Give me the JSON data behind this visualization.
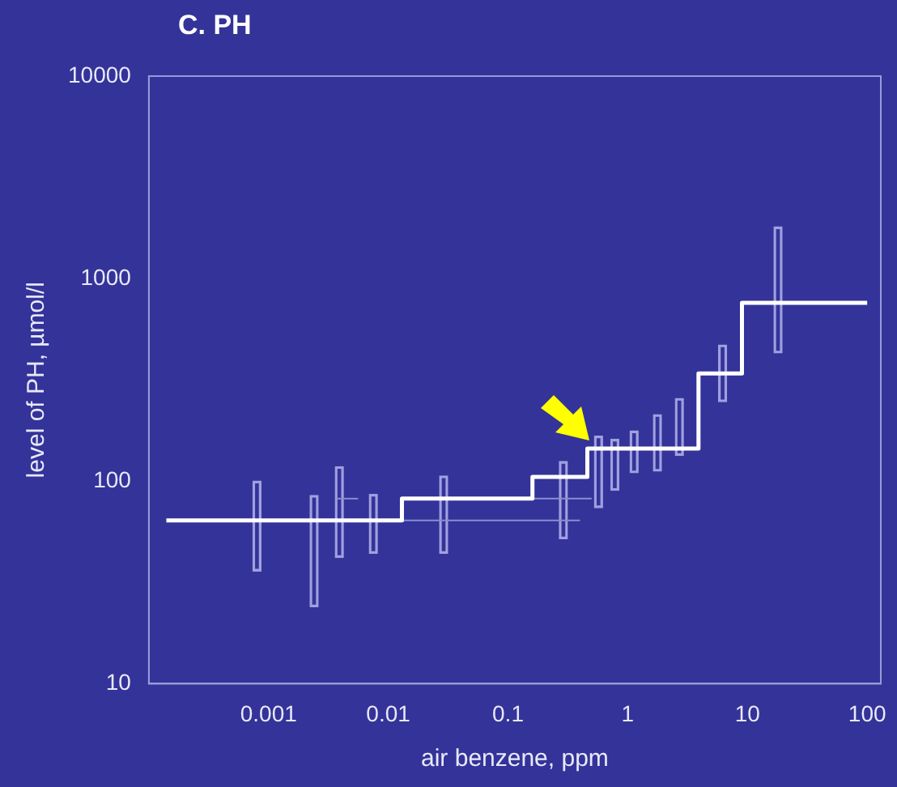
{
  "chart_data": {
    "type": "step",
    "title": "C. PH",
    "xlabel": "air benzene, ppm",
    "ylabel": "level of PH, µmol/l",
    "log": "xy",
    "grid": false,
    "xlim": [
      0.0001,
      130
    ],
    "ylim": [
      10,
      10000
    ],
    "xticks": [
      0.001,
      0.01,
      0.1,
      1,
      10,
      100
    ],
    "yticks": [
      10,
      100,
      1000,
      10000
    ],
    "series": [
      {
        "type": "bar",
        "color": "#a0a0e0",
        "x": [
          0.0008,
          0.0024,
          0.0039,
          0.0075,
          0.029,
          0.29,
          0.57,
          0.78,
          1.13,
          1.77,
          2.7,
          6.2,
          18
        ],
        "base": [
          36,
          24,
          42,
          44,
          44,
          52,
          74,
          90,
          110,
          112,
          134,
          247,
          430
        ],
        "values": [
          64,
          61,
          76,
          42,
          62,
          73,
          93,
          71,
          67,
          101,
          122,
          223,
          1370
        ]
      },
      {
        "type": "line",
        "color": "#8c8cd0",
        "x": [
          0.013,
          0.4
        ],
        "values": [
          64,
          64
        ]
      },
      {
        "type": "line",
        "color": "#8c8cd0",
        "x": [
          0.16,
          0.5
        ],
        "values": [
          82,
          82
        ]
      },
      {
        "type": "line",
        "color": "#8c8cd0",
        "x": [
          0.0037,
          0.0056
        ],
        "values": [
          82,
          82
        ]
      },
      {
        "color": "#ffffff",
        "x": [
          0.00014,
          0.013,
          0.16,
          0.46,
          3.9,
          9,
          100
        ],
        "values": [
          64,
          82,
          105,
          145,
          340,
          760,
          760
        ]
      }
    ]
  }
}
